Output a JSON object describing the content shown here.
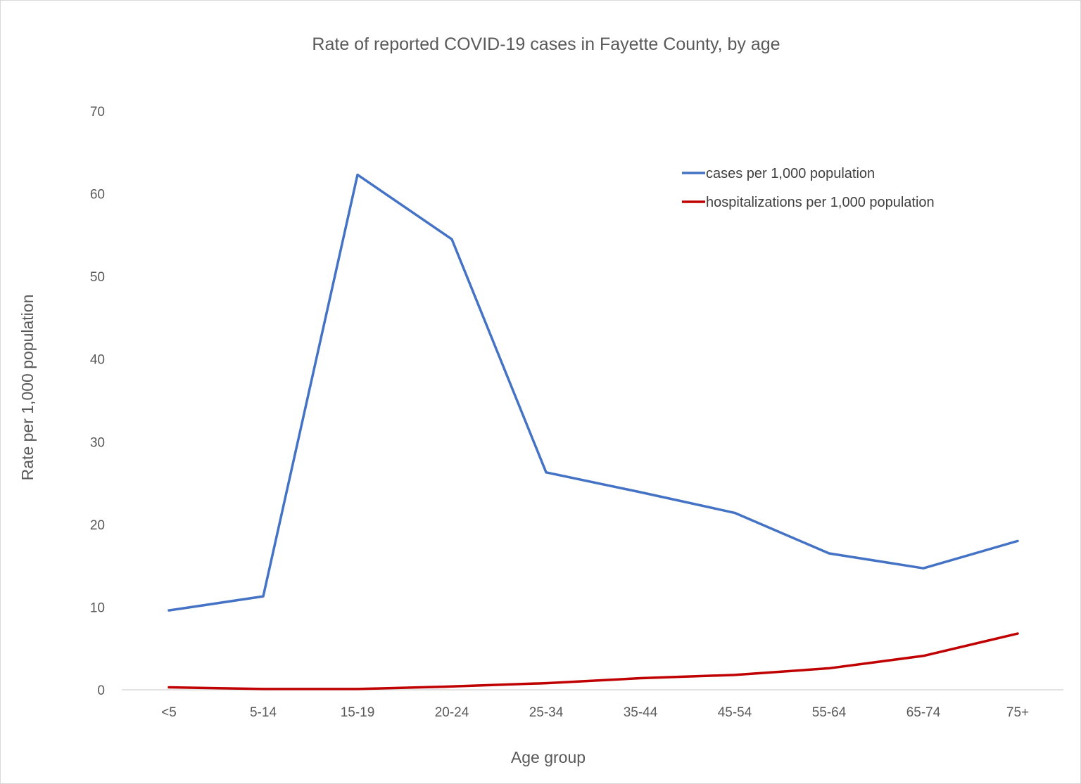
{
  "chart_data": {
    "type": "line",
    "title": "Rate of reported COVID-19 cases in Fayette County, by age",
    "xlabel": "Age group",
    "ylabel": "Rate per 1,000 population",
    "ylim": [
      0,
      70
    ],
    "yticks": [
      0,
      10,
      20,
      30,
      40,
      50,
      60,
      70
    ],
    "categories": [
      "<5",
      "5-14",
      "15-19",
      "20-24",
      "25-34",
      "35-44",
      "45-54",
      "55-64",
      "65-74",
      "75+"
    ],
    "grid": false,
    "legend_position": "top-right",
    "series": [
      {
        "name": "cases per 1,000 population",
        "color": "#4472c4",
        "values": [
          9.6,
          11.3,
          62.3,
          54.5,
          26.3,
          23.9,
          21.4,
          16.5,
          14.7,
          18.0
        ]
      },
      {
        "name": "hospitalizations per 1,000 population",
        "color": "#c00000",
        "values": [
          0.3,
          0.1,
          0.1,
          0.4,
          0.8,
          1.4,
          1.8,
          2.6,
          4.1,
          6.8
        ]
      }
    ]
  }
}
